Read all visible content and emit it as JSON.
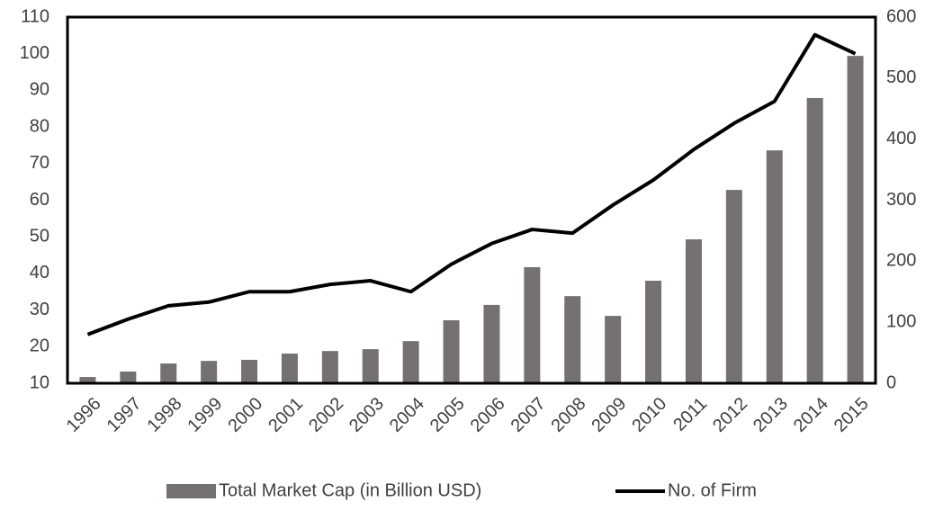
{
  "chart_data": {
    "type": "bar-line",
    "categories": [
      "1996",
      "1997",
      "1998",
      "1999",
      "2000",
      "2001",
      "2002",
      "2003",
      "2004",
      "2005",
      "2006",
      "2007",
      "2008",
      "2009",
      "2010",
      "2011",
      "2012",
      "2013",
      "2014",
      "2015"
    ],
    "series": [
      {
        "name": "Total Market Cap (in Billion USD)",
        "type": "bar",
        "color": "#767171",
        "axis": "y",
        "values": [
          11.7,
          13.2,
          15.4,
          16.1,
          16.4,
          18.1,
          18.8,
          19.3,
          21.5,
          27.2,
          31.4,
          41.7,
          33.8,
          28.4,
          38.0,
          49.3,
          62.8,
          73.6,
          87.9,
          99.4
        ]
      },
      {
        "name": "No. of Firm",
        "type": "line",
        "color": "#000000",
        "axis": "y2",
        "values": [
          80,
          105,
          127,
          133,
          150,
          150,
          162,
          168,
          150,
          195,
          229,
          252,
          246,
          292,
          333,
          383,
          426,
          462,
          571,
          540
        ]
      }
    ],
    "ylim": [
      10,
      110
    ],
    "yticks": [
      10,
      20,
      30,
      40,
      50,
      60,
      70,
      80,
      90,
      100,
      110
    ],
    "y2lim": [
      0,
      600
    ],
    "y2ticks": [
      0,
      100,
      200,
      300,
      400,
      500,
      600
    ],
    "legend": "bottom",
    "grid": false
  }
}
